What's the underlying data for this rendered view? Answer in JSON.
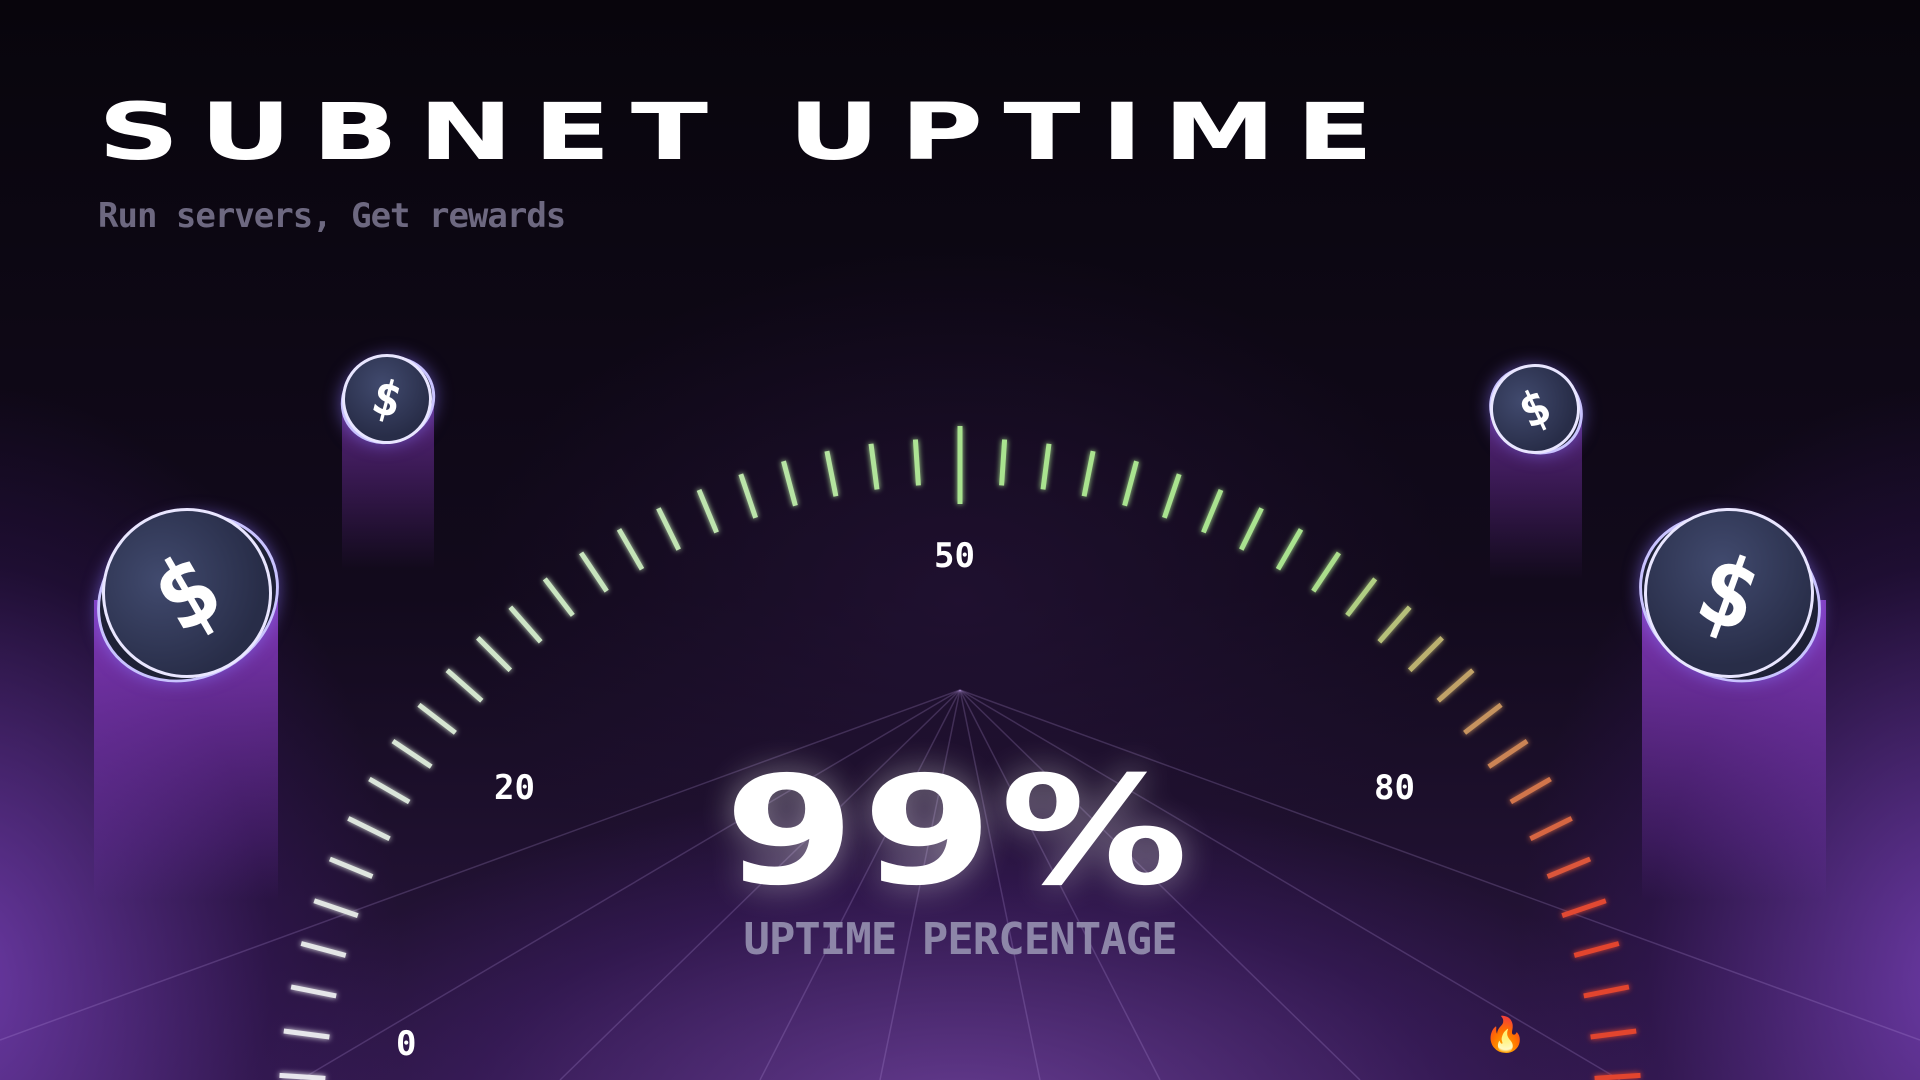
{
  "header": {
    "title": "SUBNET UPTIME",
    "subtitle": "Run servers, Get rewards"
  },
  "gauge": {
    "min": 0,
    "max": 100,
    "value": 99,
    "value_text": "99%",
    "caption": "UPTIME PERCENTAGE",
    "tick_labels": [
      "0",
      "20",
      "50",
      "80"
    ],
    "hot_icon": "fire-icon",
    "hot_glyph": "🔥",
    "colors": {
      "low": "#e8e6ee",
      "mid": "#a9e38f",
      "high": "#e2452f"
    }
  },
  "coins": [
    {
      "icon": "dollar-coin-icon",
      "glyph": "$"
    },
    {
      "icon": "dollar-coin-icon",
      "glyph": "$"
    },
    {
      "icon": "dollar-coin-icon",
      "glyph": "$"
    },
    {
      "icon": "dollar-coin-icon",
      "glyph": "$"
    }
  ]
}
